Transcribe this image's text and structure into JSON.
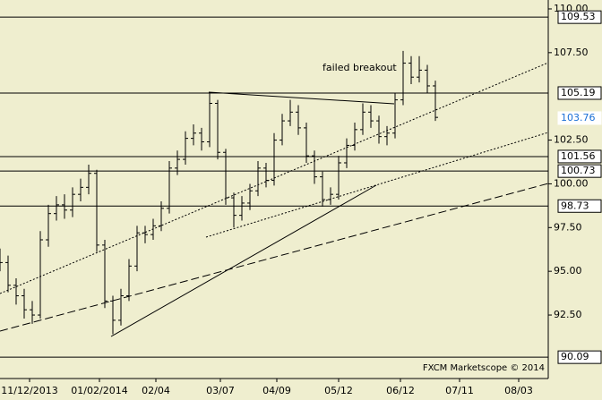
{
  "chart_data": {
    "type": "ohlc",
    "annotation": "failed breakout",
    "watermark": "FXCM Marketscope © 2014",
    "color": "#000000",
    "last_price": 103.76,
    "last_price_color": "#1a6fd6",
    "levels": [
      109.53,
      105.19,
      101.56,
      100.73,
      98.73,
      90.09
    ],
    "xlim": [
      0,
      204
    ],
    "xticks": [
      {
        "value": 11,
        "label": "11/12/2013"
      },
      {
        "value": 37,
        "label": "01/02/2014"
      },
      {
        "value": 58,
        "label": "02/04"
      },
      {
        "value": 82,
        "label": "03/07"
      },
      {
        "value": 103,
        "label": "04/09"
      },
      {
        "value": 126,
        "label": "05/12"
      },
      {
        "value": 149,
        "label": "06/12"
      },
      {
        "value": 171,
        "label": "07/11"
      },
      {
        "value": 193,
        "label": "08/03"
      }
    ],
    "ylim": [
      88.87,
      110.51
    ],
    "yticks": [
      {
        "value": 92.5,
        "label": "92.50"
      },
      {
        "value": 95,
        "label": "95.00"
      },
      {
        "value": 97.5,
        "label": "97.50"
      },
      {
        "value": 100,
        "label": "100.00"
      },
      {
        "value": 102.5,
        "label": "102.50"
      },
      {
        "value": 107.5,
        "label": "107.50"
      },
      {
        "value": 110,
        "label": "110.00"
      }
    ],
    "x": [
      0,
      3,
      6,
      9,
      12,
      15,
      18,
      21,
      24,
      27,
      30,
      33,
      36,
      39,
      42,
      45,
      48,
      51,
      54,
      57,
      60,
      63,
      66,
      69,
      72,
      75,
      78,
      81,
      84,
      87,
      90,
      93,
      96,
      99,
      102,
      105,
      108,
      111,
      114,
      117,
      120,
      123,
      126,
      129,
      132,
      135,
      138,
      141,
      144,
      147,
      150,
      153,
      156,
      159,
      162
    ],
    "open": [
      95.8,
      95.5,
      94.2,
      93.6,
      92.8,
      92.5,
      96.8,
      98.3,
      98.8,
      98.5,
      99.4,
      99.8,
      100.6,
      96.5,
      93.3,
      92.2,
      93.6,
      95.3,
      97.2,
      97.1,
      97.6,
      98.6,
      100.9,
      101.4,
      102.6,
      102.9,
      102.4,
      104.6,
      101.8,
      99.2,
      98.2,
      98.9,
      99.6,
      100.9,
      100.2,
      102.5,
      103.6,
      104.1,
      103.2,
      101.6,
      100.4,
      99.1,
      99.4,
      101.2,
      102.2,
      103.1,
      104.1,
      103.6,
      102.7,
      102.9,
      104.8,
      106.9,
      106.1,
      106.5,
      105.6
    ],
    "high": [
      96.3,
      95.9,
      94.6,
      94.0,
      93.3,
      97.3,
      98.8,
      99.3,
      99.4,
      99.8,
      100.3,
      101.1,
      100.8,
      96.8,
      93.6,
      94.0,
      95.7,
      97.6,
      97.6,
      98.0,
      99.0,
      101.3,
      101.9,
      103.0,
      103.4,
      103.2,
      105.2,
      104.8,
      102.0,
      99.5,
      99.3,
      100.0,
      101.3,
      101.2,
      102.9,
      104.0,
      104.8,
      104.5,
      103.5,
      101.9,
      100.7,
      99.8,
      101.6,
      102.6,
      103.5,
      104.6,
      104.5,
      103.9,
      103.3,
      105.2,
      107.6,
      107.3,
      107.3,
      106.8,
      105.9
    ],
    "low": [
      95.0,
      93.8,
      93.1,
      92.3,
      92.0,
      92.3,
      96.4,
      97.9,
      98.0,
      98.1,
      99.0,
      99.4,
      96.1,
      92.9,
      91.4,
      91.9,
      93.3,
      95.0,
      96.6,
      96.8,
      97.3,
      98.3,
      100.5,
      101.1,
      102.2,
      101.9,
      102.1,
      101.4,
      98.8,
      97.5,
      97.9,
      98.5,
      99.3,
      99.8,
      99.9,
      102.2,
      103.3,
      102.8,
      101.2,
      100.0,
      98.7,
      98.8,
      99.1,
      100.9,
      101.9,
      102.8,
      103.2,
      102.3,
      102.2,
      102.6,
      104.5,
      105.7,
      105.8,
      105.2,
      103.6
    ],
    "close": [
      95.5,
      94.2,
      93.6,
      92.8,
      92.5,
      96.8,
      98.3,
      98.8,
      98.5,
      99.4,
      99.8,
      100.6,
      96.5,
      93.3,
      92.2,
      93.6,
      95.3,
      97.2,
      97.1,
      97.6,
      98.6,
      100.9,
      101.4,
      102.6,
      102.9,
      102.4,
      104.6,
      101.8,
      99.2,
      98.2,
      98.9,
      99.6,
      100.9,
      100.2,
      102.5,
      103.6,
      104.1,
      103.2,
      101.6,
      100.4,
      99.1,
      99.4,
      101.2,
      102.2,
      103.1,
      104.1,
      103.6,
      102.7,
      102.9,
      104.8,
      106.9,
      106.1,
      106.5,
      105.6,
      103.8
    ]
  }
}
